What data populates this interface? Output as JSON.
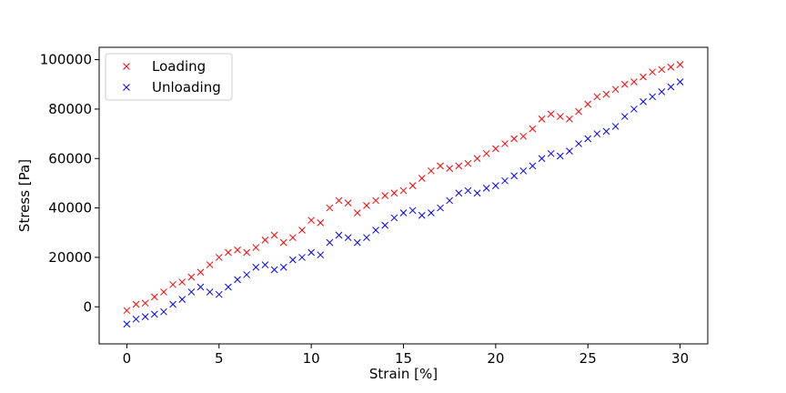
{
  "chart_data": {
    "type": "scatter",
    "title": "",
    "xlabel": "Strain [%]",
    "ylabel": "Stress [Pa]",
    "xlim": [
      -1.5,
      31.5
    ],
    "ylim": [
      -15000,
      105000
    ],
    "x_ticks": [
      0,
      5,
      10,
      15,
      20,
      25,
      30
    ],
    "x_tick_labels": [
      "0",
      "5",
      "10",
      "15",
      "20",
      "25",
      "30"
    ],
    "y_ticks": [
      0,
      20000,
      40000,
      60000,
      80000,
      100000
    ],
    "y_tick_labels": [
      "0",
      "20000",
      "40000",
      "60000",
      "80000",
      "100000"
    ],
    "grid": false,
    "legend_position": "top-left",
    "marker": "x",
    "series": [
      {
        "name": "Loading",
        "color": "#ff0000",
        "points": [
          [
            0.0,
            -1500
          ],
          [
            0.5,
            1000
          ],
          [
            1.0,
            1500
          ],
          [
            1.5,
            4000
          ],
          [
            2.0,
            6000
          ],
          [
            2.5,
            9000
          ],
          [
            3.0,
            10000
          ],
          [
            3.5,
            12000
          ],
          [
            4.0,
            14000
          ],
          [
            4.5,
            17000
          ],
          [
            5.0,
            20000
          ],
          [
            5.5,
            22000
          ],
          [
            6.0,
            23000
          ],
          [
            6.5,
            22000
          ],
          [
            7.0,
            24000
          ],
          [
            7.5,
            27000
          ],
          [
            8.0,
            29000
          ],
          [
            8.5,
            26000
          ],
          [
            9.0,
            28000
          ],
          [
            9.5,
            31000
          ],
          [
            10.0,
            35000
          ],
          [
            10.5,
            34000
          ],
          [
            11.0,
            40000
          ],
          [
            11.5,
            43000
          ],
          [
            12.0,
            42000
          ],
          [
            12.5,
            38000
          ],
          [
            13.0,
            41000
          ],
          [
            13.5,
            43000
          ],
          [
            14.0,
            45000
          ],
          [
            14.5,
            46000
          ],
          [
            15.0,
            47000
          ],
          [
            15.5,
            49000
          ],
          [
            16.0,
            52000
          ],
          [
            16.5,
            55000
          ],
          [
            17.0,
            57000
          ],
          [
            17.5,
            56000
          ],
          [
            18.0,
            57000
          ],
          [
            18.5,
            58000
          ],
          [
            19.0,
            60000
          ],
          [
            19.5,
            62000
          ],
          [
            20.0,
            64000
          ],
          [
            20.5,
            66000
          ],
          [
            21.0,
            68000
          ],
          [
            21.5,
            69000
          ],
          [
            22.0,
            72000
          ],
          [
            22.5,
            76000
          ],
          [
            23.0,
            78000
          ],
          [
            23.5,
            77000
          ],
          [
            24.0,
            76000
          ],
          [
            24.5,
            79000
          ],
          [
            25.0,
            82000
          ],
          [
            25.5,
            85000
          ],
          [
            26.0,
            86000
          ],
          [
            26.5,
            88000
          ],
          [
            27.0,
            90000
          ],
          [
            27.5,
            91000
          ],
          [
            28.0,
            93000
          ],
          [
            28.5,
            95000
          ],
          [
            29.0,
            96000
          ],
          [
            29.5,
            97000
          ],
          [
            30.0,
            98000
          ]
        ]
      },
      {
        "name": "Unloading",
        "color": "#0000ff",
        "points": [
          [
            0.0,
            -7000
          ],
          [
            0.5,
            -5000
          ],
          [
            1.0,
            -4000
          ],
          [
            1.5,
            -3000
          ],
          [
            2.0,
            -2000
          ],
          [
            2.5,
            1000
          ],
          [
            3.0,
            3000
          ],
          [
            3.5,
            6000
          ],
          [
            4.0,
            8000
          ],
          [
            4.5,
            6000
          ],
          [
            5.0,
            5000
          ],
          [
            5.5,
            8000
          ],
          [
            6.0,
            11000
          ],
          [
            6.5,
            13000
          ],
          [
            7.0,
            16000
          ],
          [
            7.5,
            17000
          ],
          [
            8.0,
            15000
          ],
          [
            8.5,
            16000
          ],
          [
            9.0,
            19000
          ],
          [
            9.5,
            20000
          ],
          [
            10.0,
            22000
          ],
          [
            10.5,
            21000
          ],
          [
            11.0,
            26000
          ],
          [
            11.5,
            29000
          ],
          [
            12.0,
            28000
          ],
          [
            12.5,
            26000
          ],
          [
            13.0,
            28000
          ],
          [
            13.5,
            31000
          ],
          [
            14.0,
            33000
          ],
          [
            14.5,
            36000
          ],
          [
            15.0,
            38000
          ],
          [
            15.5,
            39000
          ],
          [
            16.0,
            37000
          ],
          [
            16.5,
            38000
          ],
          [
            17.0,
            40000
          ],
          [
            17.5,
            43000
          ],
          [
            18.0,
            46000
          ],
          [
            18.5,
            47000
          ],
          [
            19.0,
            46000
          ],
          [
            19.5,
            48000
          ],
          [
            20.0,
            49000
          ],
          [
            20.5,
            51000
          ],
          [
            21.0,
            53000
          ],
          [
            21.5,
            55000
          ],
          [
            22.0,
            57000
          ],
          [
            22.5,
            60000
          ],
          [
            23.0,
            62000
          ],
          [
            23.5,
            61000
          ],
          [
            24.0,
            63000
          ],
          [
            24.5,
            66000
          ],
          [
            25.0,
            68000
          ],
          [
            25.5,
            70000
          ],
          [
            26.0,
            71000
          ],
          [
            26.5,
            73000
          ],
          [
            27.0,
            77000
          ],
          [
            27.5,
            80000
          ],
          [
            28.0,
            83000
          ],
          [
            28.5,
            85000
          ],
          [
            29.0,
            87000
          ],
          [
            29.5,
            89000
          ],
          [
            30.0,
            91000
          ]
        ]
      }
    ]
  }
}
